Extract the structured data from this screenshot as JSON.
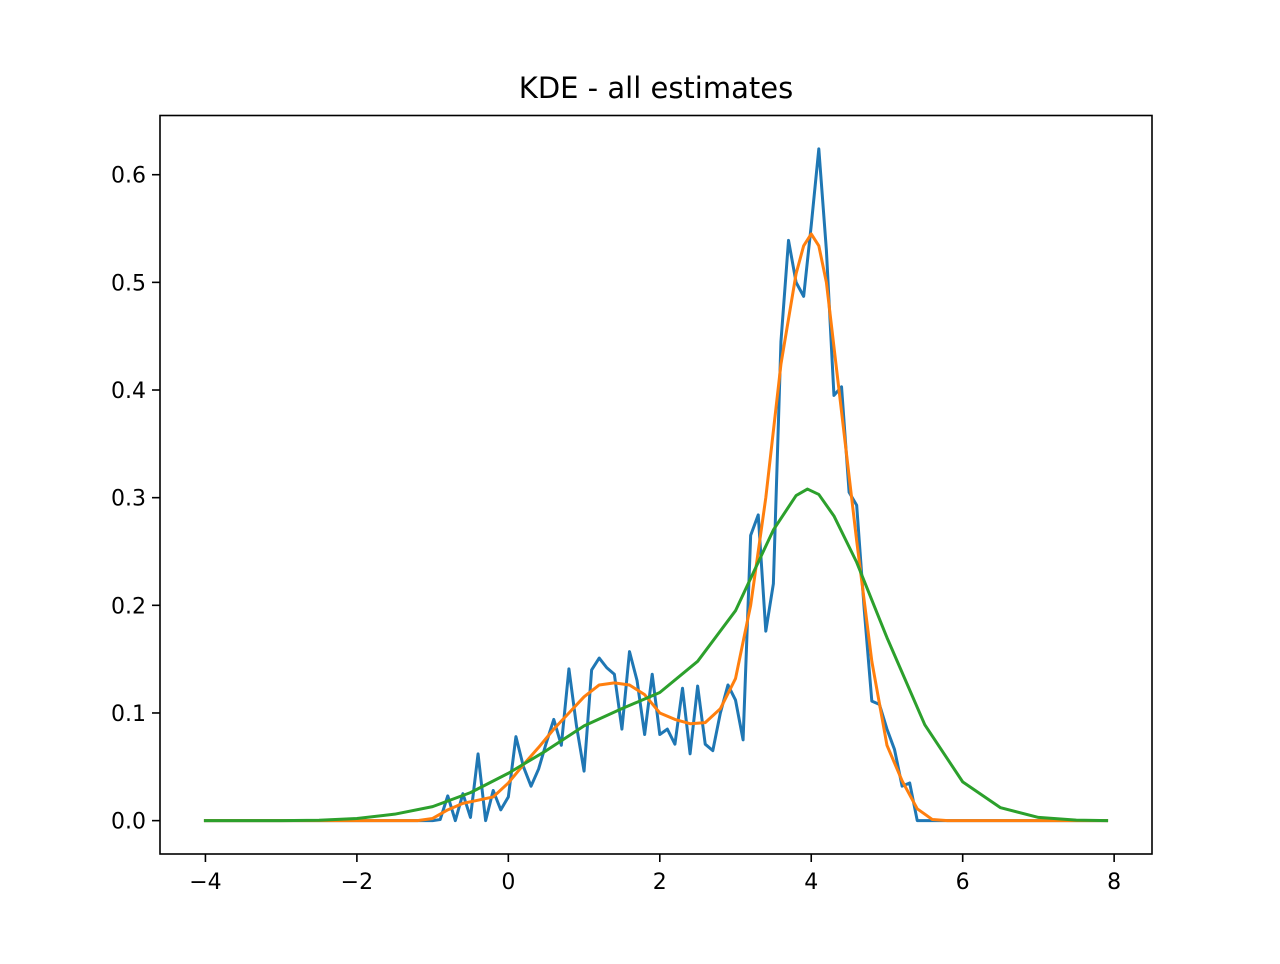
{
  "chart_data": {
    "type": "line",
    "title": "KDE - all estimates",
    "xlabel": "",
    "ylabel": "",
    "xlim": [
      -4.6,
      8.5
    ],
    "ylim": [
      -0.031,
      0.655
    ],
    "x_ticks": [
      -4,
      -2,
      0,
      2,
      4,
      6,
      8
    ],
    "x_tick_labels": [
      "−4",
      "−2",
      "0",
      "2",
      "4",
      "6",
      "8"
    ],
    "y_ticks": [
      0.0,
      0.1,
      0.2,
      0.3,
      0.4,
      0.5,
      0.6
    ],
    "y_tick_labels": [
      "0.0",
      "0.1",
      "0.2",
      "0.3",
      "0.4",
      "0.5",
      "0.6"
    ],
    "grid": false,
    "legend": false,
    "series": [
      {
        "color": "#1f77b4",
        "points": [
          [
            -4.0,
            0.0
          ],
          [
            -1.0,
            0.0
          ],
          [
            -0.9,
            0.001
          ],
          [
            -0.8,
            0.023
          ],
          [
            -0.7,
            0.0
          ],
          [
            -0.6,
            0.025
          ],
          [
            -0.5,
            0.003
          ],
          [
            -0.4,
            0.062
          ],
          [
            -0.3,
            0.0
          ],
          [
            -0.2,
            0.028
          ],
          [
            -0.1,
            0.01
          ],
          [
            0.0,
            0.022
          ],
          [
            0.1,
            0.078
          ],
          [
            0.2,
            0.05
          ],
          [
            0.3,
            0.032
          ],
          [
            0.4,
            0.048
          ],
          [
            0.5,
            0.072
          ],
          [
            0.6,
            0.094
          ],
          [
            0.7,
            0.07
          ],
          [
            0.8,
            0.141
          ],
          [
            0.9,
            0.088
          ],
          [
            1.0,
            0.046
          ],
          [
            1.1,
            0.14
          ],
          [
            1.2,
            0.151
          ],
          [
            1.3,
            0.142
          ],
          [
            1.4,
            0.136
          ],
          [
            1.5,
            0.085
          ],
          [
            1.6,
            0.157
          ],
          [
            1.7,
            0.13
          ],
          [
            1.8,
            0.08
          ],
          [
            1.9,
            0.136
          ],
          [
            2.0,
            0.08
          ],
          [
            2.1,
            0.085
          ],
          [
            2.2,
            0.071
          ],
          [
            2.3,
            0.123
          ],
          [
            2.4,
            0.062
          ],
          [
            2.5,
            0.125
          ],
          [
            2.6,
            0.071
          ],
          [
            2.7,
            0.065
          ],
          [
            2.8,
            0.1
          ],
          [
            2.9,
            0.126
          ],
          [
            3.0,
            0.112
          ],
          [
            3.1,
            0.075
          ],
          [
            3.2,
            0.265
          ],
          [
            3.3,
            0.284
          ],
          [
            3.4,
            0.176
          ],
          [
            3.5,
            0.22
          ],
          [
            3.6,
            0.445
          ],
          [
            3.7,
            0.539
          ],
          [
            3.8,
            0.5
          ],
          [
            3.9,
            0.487
          ],
          [
            4.0,
            0.553
          ],
          [
            4.1,
            0.624
          ],
          [
            4.2,
            0.53
          ],
          [
            4.3,
            0.395
          ],
          [
            4.4,
            0.403
          ],
          [
            4.5,
            0.305
          ],
          [
            4.6,
            0.293
          ],
          [
            4.7,
            0.196
          ],
          [
            4.8,
            0.111
          ],
          [
            4.9,
            0.108
          ],
          [
            5.0,
            0.085
          ],
          [
            5.1,
            0.066
          ],
          [
            5.2,
            0.032
          ],
          [
            5.3,
            0.035
          ],
          [
            5.4,
            0.0
          ],
          [
            7.9,
            0.0
          ]
        ]
      },
      {
        "color": "#ff7f0e",
        "points": [
          [
            -4.0,
            0.0
          ],
          [
            -1.2,
            0.0
          ],
          [
            -1.0,
            0.002
          ],
          [
            -0.8,
            0.01
          ],
          [
            -0.6,
            0.016
          ],
          [
            -0.4,
            0.019
          ],
          [
            -0.2,
            0.022
          ],
          [
            0.0,
            0.035
          ],
          [
            0.2,
            0.052
          ],
          [
            0.4,
            0.068
          ],
          [
            0.6,
            0.085
          ],
          [
            0.8,
            0.1
          ],
          [
            1.0,
            0.115
          ],
          [
            1.2,
            0.126
          ],
          [
            1.4,
            0.128
          ],
          [
            1.6,
            0.126
          ],
          [
            1.8,
            0.117
          ],
          [
            2.0,
            0.1
          ],
          [
            2.2,
            0.094
          ],
          [
            2.4,
            0.09
          ],
          [
            2.6,
            0.091
          ],
          [
            2.8,
            0.104
          ],
          [
            3.0,
            0.132
          ],
          [
            3.2,
            0.2
          ],
          [
            3.4,
            0.3
          ],
          [
            3.6,
            0.424
          ],
          [
            3.8,
            0.508
          ],
          [
            3.9,
            0.534
          ],
          [
            4.0,
            0.545
          ],
          [
            4.1,
            0.534
          ],
          [
            4.2,
            0.5
          ],
          [
            4.4,
            0.38
          ],
          [
            4.6,
            0.26
          ],
          [
            4.8,
            0.148
          ],
          [
            5.0,
            0.07
          ],
          [
            5.2,
            0.037
          ],
          [
            5.4,
            0.011
          ],
          [
            5.6,
            0.001
          ],
          [
            5.8,
            0.0
          ],
          [
            7.9,
            0.0
          ]
        ]
      },
      {
        "color": "#2ca02c",
        "points": [
          [
            -4.0,
            0.0
          ],
          [
            -3.0,
            0.0
          ],
          [
            -2.5,
            0.0004
          ],
          [
            -2.0,
            0.002
          ],
          [
            -1.5,
            0.006
          ],
          [
            -1.0,
            0.013
          ],
          [
            -0.5,
            0.026
          ],
          [
            0.0,
            0.044
          ],
          [
            0.5,
            0.065
          ],
          [
            1.0,
            0.088
          ],
          [
            1.5,
            0.104
          ],
          [
            2.0,
            0.119
          ],
          [
            2.5,
            0.148
          ],
          [
            3.0,
            0.195
          ],
          [
            3.5,
            0.27
          ],
          [
            3.8,
            0.302
          ],
          [
            3.95,
            0.308
          ],
          [
            4.1,
            0.303
          ],
          [
            4.3,
            0.283
          ],
          [
            4.6,
            0.24
          ],
          [
            5.0,
            0.17
          ],
          [
            5.5,
            0.089
          ],
          [
            6.0,
            0.036
          ],
          [
            6.5,
            0.012
          ],
          [
            7.0,
            0.003
          ],
          [
            7.5,
            0.0005
          ],
          [
            7.9,
            0.0
          ]
        ]
      }
    ]
  }
}
